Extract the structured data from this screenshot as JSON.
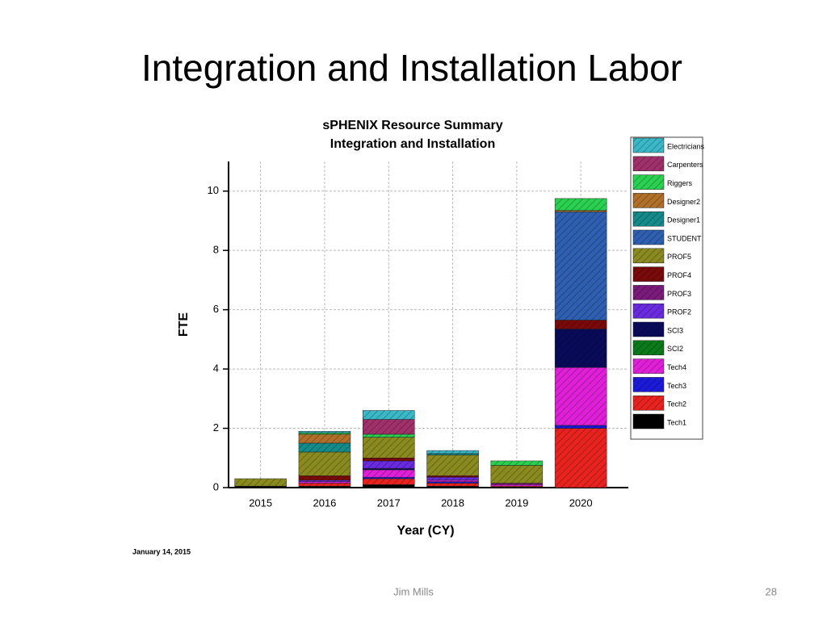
{
  "slide_title": "Integration and Installation Labor",
  "footer": "Jim Mills",
  "page_number": "28",
  "date_note": "January 14, 2015",
  "chart_data": {
    "type": "stacked-bar",
    "title": "sPHENIX Resource Summary",
    "subtitle": "Integration and Installation",
    "x_label": "Year (CY)",
    "y_label": "FTE",
    "categories": [
      "2015",
      "2016",
      "2017",
      "2018",
      "2019",
      "2020"
    ],
    "ylim": [
      0,
      11
    ],
    "yticks": [
      0,
      2,
      4,
      6,
      8,
      10
    ],
    "grid": true,
    "legend": "right",
    "series": [
      {
        "name": "Tech1",
        "color": "#000000",
        "values": [
          0.05,
          0.05,
          0.1,
          0.05,
          0.02,
          0
        ]
      },
      {
        "name": "Tech2",
        "color": "#e8231f",
        "values": [
          0,
          0.1,
          0.2,
          0.1,
          0.03,
          2.0
        ]
      },
      {
        "name": "Tech3",
        "color": "#1a1ad8",
        "values": [
          0,
          0,
          0.05,
          0.05,
          0,
          0.1
        ]
      },
      {
        "name": "Tech4",
        "color": "#e020d8",
        "values": [
          0,
          0.05,
          0.25,
          0.05,
          0.05,
          1.95
        ]
      },
      {
        "name": "SCI2",
        "color": "#0a7a1a",
        "values": [
          0,
          0,
          0,
          0,
          0,
          0
        ]
      },
      {
        "name": "SCI3",
        "color": "#0a0a5a",
        "values": [
          0,
          0,
          0.05,
          0,
          0,
          1.3
        ]
      },
      {
        "name": "PROF2",
        "color": "#6a2ae0",
        "values": [
          0,
          0.05,
          0.25,
          0.1,
          0,
          0
        ]
      },
      {
        "name": "PROF3",
        "color": "#7a1a7a",
        "values": [
          0,
          0,
          0,
          0,
          0.05,
          0
        ]
      },
      {
        "name": "PROF4",
        "color": "#7a0a0a",
        "values": [
          0,
          0.15,
          0.1,
          0.05,
          0,
          0.3
        ]
      },
      {
        "name": "PROF5",
        "color": "#8a8a20",
        "values": [
          0.25,
          0.8,
          0.7,
          0.7,
          0.6,
          0
        ]
      },
      {
        "name": "STUDENT",
        "color": "#2e5fb0",
        "values": [
          0,
          0,
          0,
          0,
          0,
          3.65
        ]
      },
      {
        "name": "Designer1",
        "color": "#148a8a",
        "values": [
          0,
          0.3,
          0,
          0.05,
          0,
          0
        ]
      },
      {
        "name": "Designer2",
        "color": "#b0702a",
        "values": [
          0,
          0.3,
          0,
          0,
          0,
          0.05
        ]
      },
      {
        "name": "Riggers",
        "color": "#2ad050",
        "values": [
          0,
          0.05,
          0.1,
          0,
          0.15,
          0.4
        ]
      },
      {
        "name": "Carpenters",
        "color": "#a0306a",
        "values": [
          0,
          0,
          0.5,
          0,
          0,
          0
        ]
      },
      {
        "name": "Electricians",
        "color": "#3ab8c8",
        "values": [
          0,
          0.05,
          0.3,
          0.1,
          0,
          0
        ]
      }
    ]
  }
}
